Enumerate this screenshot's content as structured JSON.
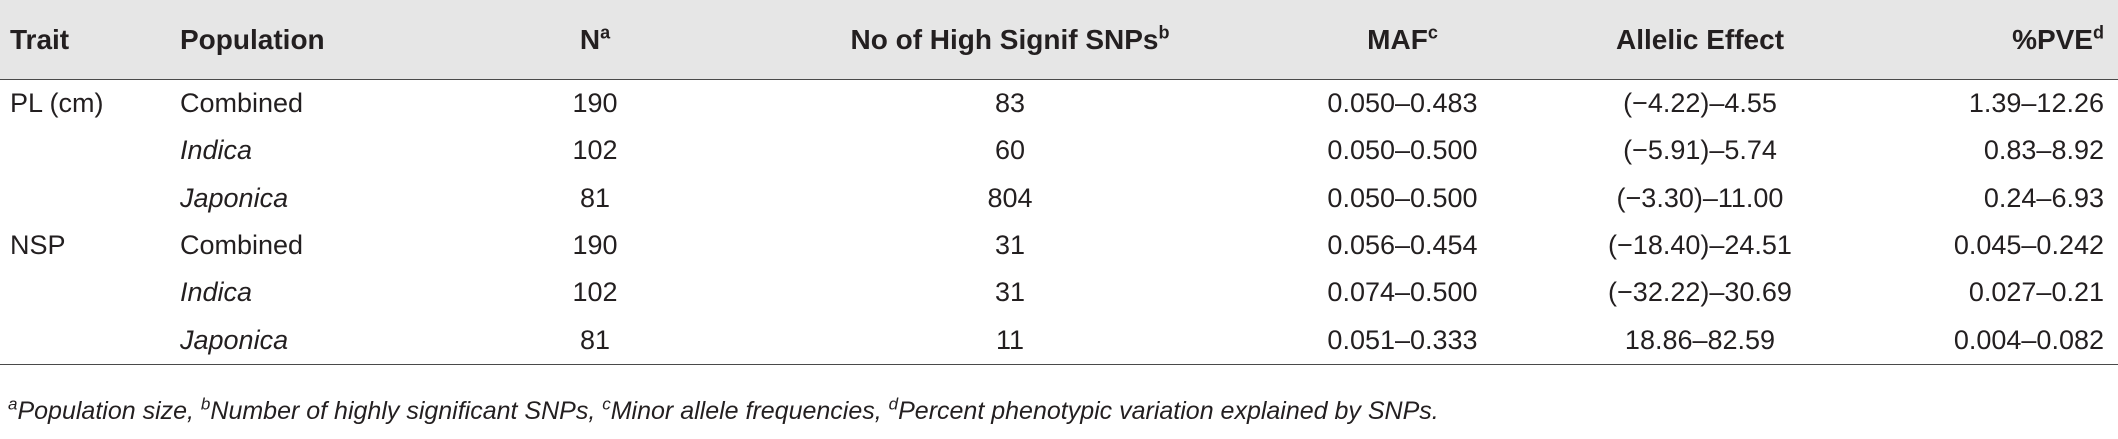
{
  "table": {
    "headers": {
      "trait": "Trait",
      "population": "Population",
      "n": "N",
      "n_sup": "a",
      "snps": "No of High Signif SNPs",
      "snps_sup": "b",
      "maf": "MAF",
      "maf_sup": "c",
      "allelic": "Allelic Effect",
      "pve": "%PVE",
      "pve_sup": "d"
    },
    "rows": [
      {
        "trait": "PL (cm)",
        "population": "Combined",
        "n": "190",
        "snps": "83",
        "maf": "0.050–0.483",
        "allelic": "(−4.22)–4.55",
        "pve": "1.39–12.26"
      },
      {
        "trait": "",
        "population": "Indica",
        "n": "102",
        "snps": "60",
        "maf": "0.050–0.500",
        "allelic": "(−5.91)–5.74",
        "pve": "0.83–8.92"
      },
      {
        "trait": "",
        "population": "Japonica",
        "n": "81",
        "snps": "804",
        "maf": "0.050–0.500",
        "allelic": "(−3.30)–11.00",
        "pve": "0.24–6.93"
      },
      {
        "trait": "NSP",
        "population": "Combined",
        "n": "190",
        "snps": "31",
        "maf": "0.056–0.454",
        "allelic": "(−18.40)–24.51",
        "pve": "0.045–0.242"
      },
      {
        "trait": "",
        "population": "Indica",
        "n": "102",
        "snps": "31",
        "maf": "0.074–0.500",
        "allelic": "(−32.22)–30.69",
        "pve": "0.027–0.21"
      },
      {
        "trait": "",
        "population": "Japonica",
        "n": "81",
        "snps": "11",
        "maf": "0.051–0.333",
        "allelic": "18.86–82.59",
        "pve": "0.004–0.082"
      }
    ]
  },
  "footnote": {
    "a_sup": "a",
    "a_text": "Population size, ",
    "b_sup": "b",
    "b_text": "Number of highly significant SNPs, ",
    "c_sup": "c",
    "c_text": "Minor allele frequencies, ",
    "d_sup": "d",
    "d_text": "Percent phenotypic variation explained by SNPs."
  }
}
